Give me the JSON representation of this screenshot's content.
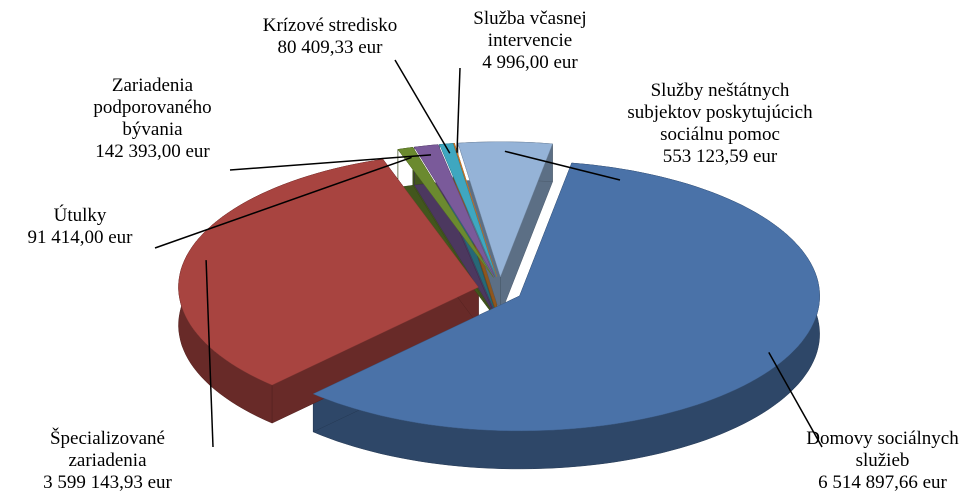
{
  "chart_data": {
    "type": "pie",
    "categories": [
      "Domovy sociálnych služieb",
      "Špecializované zariadenia",
      "Útulky",
      "Zariadenia podporovaného bývania",
      "Krízové stredisko",
      "Služba včasnej intervencie",
      "Služby neštátnych subjektov poskytujúcich sociálnu pomoc"
    ],
    "values": [
      6514897.66,
      3599143.93,
      91414.0,
      142393.0,
      80409.33,
      4996.0,
      553123.59
    ],
    "value_labels": [
      "6 514 897,66 eur",
      "3 599 143,93 eur",
      "91 414,00 eur",
      "142 393,00 eur",
      "80 409,33 eur",
      "4 996,00 eur",
      "553 123,59 eur"
    ],
    "colors": [
      "#4a72a8",
      "#a84440",
      "#6b8a2f",
      "#7a5a9a",
      "#3fa7c0",
      "#e58a2e",
      "#95b3d7"
    ]
  }
}
